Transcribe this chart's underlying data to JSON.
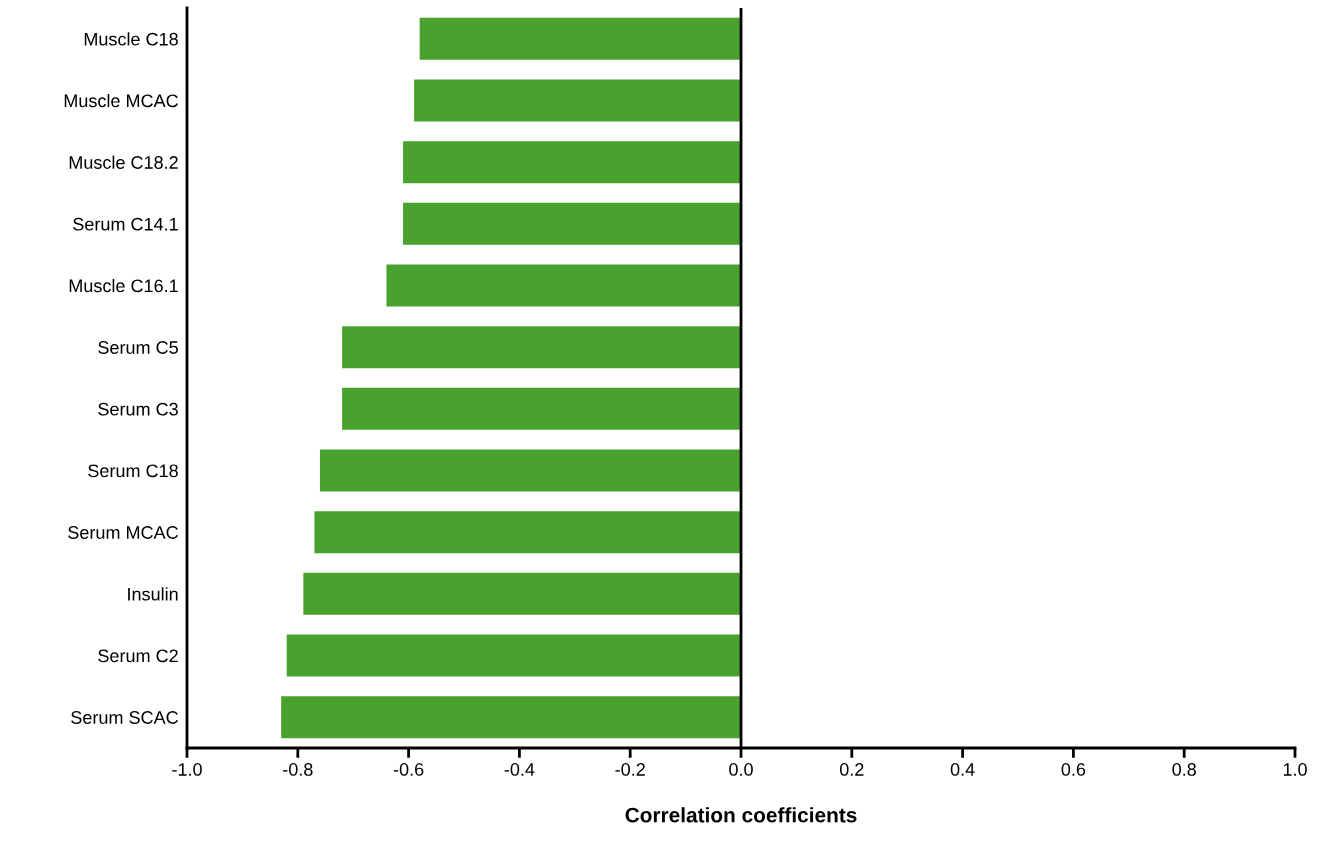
{
  "chart_data": {
    "type": "bar",
    "orientation": "horizontal",
    "xlabel": "Correlation coefficients",
    "categories": [
      "Muscle C18",
      "Muscle MCAC",
      "Muscle C18.2",
      "Serum C14.1",
      "Muscle C16.1",
      "Serum C5",
      "Serum C3",
      "Serum C18",
      "Serum MCAC",
      "Insulin",
      "Serum C2",
      "Serum SCAC"
    ],
    "values": [
      -0.58,
      -0.59,
      -0.61,
      -0.61,
      -0.64,
      -0.72,
      -0.72,
      -0.76,
      -0.77,
      -0.79,
      -0.82,
      -0.83
    ],
    "color": "#48a22d",
    "xlim": [
      -1.0,
      1.0
    ],
    "xticks": [
      {
        "value": -1.0,
        "label": "-1.0"
      },
      {
        "value": -0.8,
        "label": "-0.8"
      },
      {
        "value": -0.6,
        "label": "-0.6"
      },
      {
        "value": -0.4,
        "label": "-0.4"
      },
      {
        "value": -0.2,
        "label": "-0.2"
      },
      {
        "value": 0,
        "label": "0.0"
      },
      {
        "value": 0.2,
        "label": "0.2"
      },
      {
        "value": 0.4,
        "label": "0.4"
      },
      {
        "value": 0.6,
        "label": "0.6"
      },
      {
        "value": 0.8,
        "label": "0.8"
      },
      {
        "value": 1.0,
        "label": "1.0"
      }
    ],
    "ref_lines": [
      {
        "axis": "x",
        "value": 0,
        "color": "#000000"
      }
    ],
    "grid": false
  }
}
